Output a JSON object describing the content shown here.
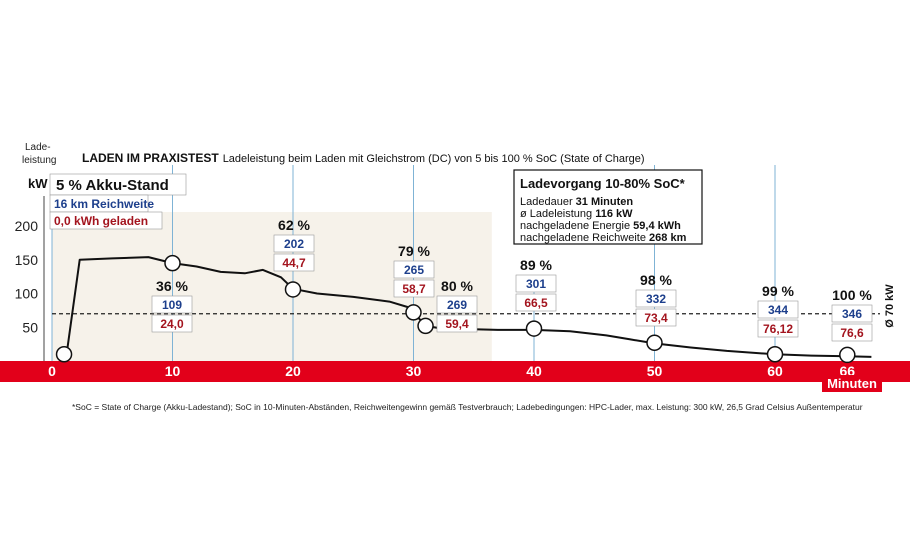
{
  "chart_data": {
    "type": "line",
    "title": "LADEN IM PRAXISTEST",
    "subtitle": "Ladeleistung beim Laden mit Gleichstrom (DC) von 5 bis 100 % SoC (State of Charge)",
    "ylabel_line1": "Lade-",
    "ylabel_line2": "leistung",
    "yunit": "kW",
    "xunit": "Minuten",
    "xlim": [
      0,
      70
    ],
    "ylim": [
      0,
      250
    ],
    "x_ticks": [
      "0",
      "10",
      "20",
      "30",
      "40",
      "50",
      "60",
      "66"
    ],
    "y_ticks": [
      "50",
      "100",
      "150",
      "200"
    ],
    "x_tick_values": [
      0,
      10,
      20,
      30,
      40,
      50,
      60,
      66
    ],
    "y_tick_values": [
      50,
      100,
      150,
      200
    ],
    "curve": {
      "x": [
        1.2,
        2.3,
        5,
        8,
        10,
        12,
        14,
        16,
        17.5,
        19,
        20,
        22,
        25,
        28,
        29.5,
        30,
        30.5,
        31,
        33,
        35,
        37,
        40,
        43,
        46,
        48,
        50,
        53,
        56,
        60,
        63,
        66,
        68
      ],
      "y": [
        9,
        150,
        152,
        154,
        145,
        140,
        132,
        130,
        135,
        124,
        107,
        100,
        95,
        88,
        80,
        72,
        62,
        52,
        46,
        47,
        46,
        46,
        44,
        38,
        32,
        26,
        20,
        15,
        10,
        8,
        7,
        6
      ]
    },
    "reference_line": {
      "value": 70,
      "label": "Ø 70 kW"
    },
    "stops": [
      {
        "x": 1,
        "y": 10,
        "soc": "5 % Akku-Stand",
        "range": "16 km Reichweite",
        "energy": "0,0 kWh geladen"
      },
      {
        "x": 10,
        "y": 145,
        "soc": "36 %",
        "range": "109",
        "energy": "24,0"
      },
      {
        "x": 20,
        "y": 106,
        "soc": "62 %",
        "range": "202",
        "energy": "44,7"
      },
      {
        "x": 30,
        "y": 72,
        "soc": "79 %",
        "range": "265",
        "energy": "58,7"
      },
      {
        "x": 31,
        "y": 52,
        "soc": "80 %",
        "range": "269",
        "energy": "59,4"
      },
      {
        "x": 40,
        "y": 48,
        "soc": "89 %",
        "range": "301",
        "energy": "66,5"
      },
      {
        "x": 50,
        "y": 27,
        "soc": "98 %",
        "range": "332",
        "energy": "73,4"
      },
      {
        "x": 60,
        "y": 10,
        "soc": "99 %",
        "range": "344",
        "energy": "76,12"
      },
      {
        "x": 66,
        "y": 9,
        "soc": "100 %",
        "range": "346",
        "energy": "76,6"
      }
    ],
    "infobox": {
      "title": "Ladevorgang 10-80% SoC*",
      "line1_label": "Ladedauer ",
      "line1_value": "31 Minuten",
      "line2_label": "ø Ladeleistung ",
      "line2_value": "116 kW",
      "line3_label": "nachgeladene Energie ",
      "line3_value": "59,4 kWh",
      "line4_label": "nachgeladene Reichweite ",
      "line4_value": "268 km"
    },
    "colors": {
      "axis_red": "#e2001a",
      "range_blue": "#1d3f8c",
      "energy_red": "#a3141e",
      "band": "#f6f2ea",
      "guide": "#7fb3d5"
    },
    "grid": false,
    "legend": "none"
  },
  "footnote": "*SoC = State of Charge (Akku-Ladestand); SoC in 10-Minuten-Abständen, Reichweitengewinn gemäß Testverbrauch; Ladebedingungen: HPC-Lader, max. Leistung: 300 kW, 26,5 Grad Celsius Außentemperatur"
}
